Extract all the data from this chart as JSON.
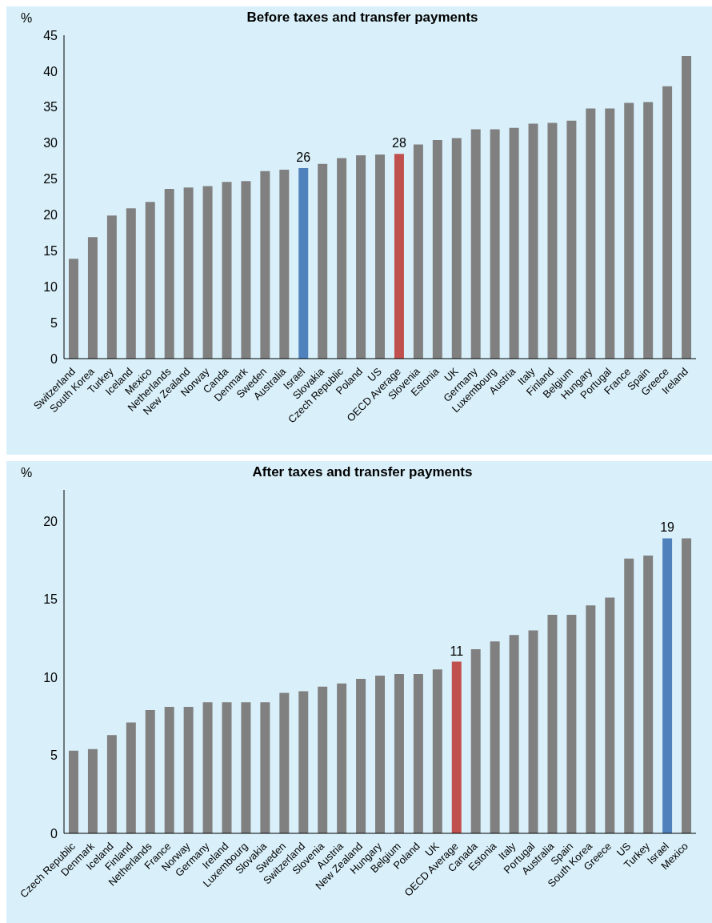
{
  "chart_data": [
    {
      "type": "bar",
      "title": "Before taxes and transfer payments",
      "ylabel": "%",
      "categories": [
        "Switzerland",
        "South Korea",
        "Turkey",
        "Iceland",
        "Mexico",
        "Netherlands",
        "New Zealand",
        "Norway",
        "Canda",
        "Denmark",
        "Sweden",
        "Australia",
        "Israel",
        "Slovakia",
        "Czech Republic",
        "Poland",
        "US",
        "OECD Average",
        "Slovenia",
        "Estonia",
        "UK",
        "Germany",
        "Luxembourg",
        "Austria",
        "Italy",
        "Finland",
        "Belgium",
        "Hungary",
        "Portugal",
        "France",
        "Spain",
        "Greece",
        "Ireland"
      ],
      "values": [
        13.9,
        16.9,
        19.9,
        20.9,
        21.8,
        23.6,
        23.8,
        24.0,
        24.6,
        24.7,
        26.1,
        26.3,
        26.5,
        27.1,
        27.9,
        28.3,
        28.4,
        28.5,
        29.8,
        30.4,
        30.7,
        31.9,
        31.9,
        32.1,
        32.7,
        32.8,
        33.1,
        34.8,
        34.8,
        35.6,
        35.7,
        37.9,
        42.1
      ],
      "colors": [
        "#808080",
        "#808080",
        "#808080",
        "#808080",
        "#808080",
        "#808080",
        "#808080",
        "#808080",
        "#808080",
        "#808080",
        "#808080",
        "#808080",
        "#4f81bd",
        "#808080",
        "#808080",
        "#808080",
        "#808080",
        "#c0504d",
        "#808080",
        "#808080",
        "#808080",
        "#808080",
        "#808080",
        "#808080",
        "#808080",
        "#808080",
        "#808080",
        "#808080",
        "#808080",
        "#808080",
        "#808080",
        "#808080",
        "#808080"
      ],
      "value_labels": [
        null,
        null,
        null,
        null,
        null,
        null,
        null,
        null,
        null,
        null,
        null,
        null,
        "26",
        null,
        null,
        null,
        null,
        "28",
        null,
        null,
        null,
        null,
        null,
        null,
        null,
        null,
        null,
        null,
        null,
        null,
        null,
        null,
        null
      ],
      "ylim": [
        0,
        45
      ],
      "yticks": [
        0,
        5,
        10,
        15,
        20,
        25,
        30,
        35,
        40,
        45
      ],
      "grid": false,
      "legend": false
    },
    {
      "type": "bar",
      "title": "After taxes and transfer payments",
      "ylabel": "%",
      "categories": [
        "Czech Republic",
        "Denmark",
        "Iceland",
        "Finland",
        "Netherlands",
        "France",
        "Norway",
        "Germany",
        "Ireland",
        "Luxembourg",
        "Slovakia",
        "Sweden",
        "Switzerland",
        "Slovenia",
        "Austria",
        "New Zealand",
        "Hungary",
        "Belgium",
        "Poland",
        "UK",
        "OECD Average",
        "Canada",
        "Estonia",
        "Italy",
        "Portugal",
        "Australia",
        "Spain",
        "South Korea",
        "Greece",
        "US",
        "Turkey",
        "Israel",
        "Mexico"
      ],
      "values": [
        5.3,
        5.4,
        6.3,
        7.1,
        7.9,
        8.1,
        8.1,
        8.4,
        8.4,
        8.4,
        8.4,
        9.0,
        9.1,
        9.4,
        9.6,
        9.9,
        10.1,
        10.2,
        10.2,
        10.5,
        11.0,
        11.8,
        12.3,
        12.7,
        13.0,
        14.0,
        14.0,
        14.6,
        15.1,
        17.6,
        17.8,
        18.9,
        18.9
      ],
      "colors": [
        "#808080",
        "#808080",
        "#808080",
        "#808080",
        "#808080",
        "#808080",
        "#808080",
        "#808080",
        "#808080",
        "#808080",
        "#808080",
        "#808080",
        "#808080",
        "#808080",
        "#808080",
        "#808080",
        "#808080",
        "#808080",
        "#808080",
        "#808080",
        "#c0504d",
        "#808080",
        "#808080",
        "#808080",
        "#808080",
        "#808080",
        "#808080",
        "#808080",
        "#808080",
        "#808080",
        "#808080",
        "#4f81bd",
        "#808080"
      ],
      "value_labels": [
        null,
        null,
        null,
        null,
        null,
        null,
        null,
        null,
        null,
        null,
        null,
        null,
        null,
        null,
        null,
        null,
        null,
        null,
        null,
        null,
        "11",
        null,
        null,
        null,
        null,
        null,
        null,
        null,
        null,
        null,
        null,
        "19",
        null
      ],
      "ylim": [
        0,
        22
      ],
      "yticks": [
        0,
        5,
        10,
        15,
        20
      ],
      "grid": false,
      "legend": false
    }
  ]
}
